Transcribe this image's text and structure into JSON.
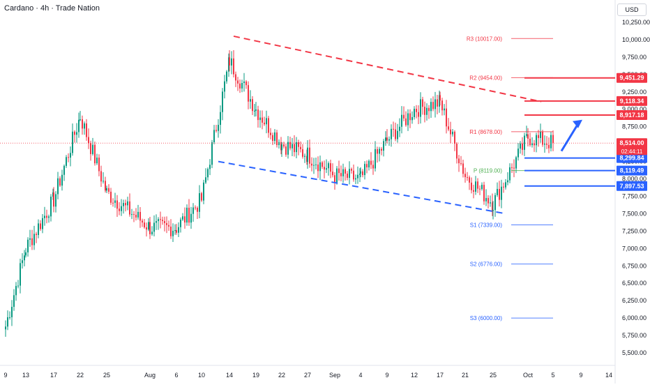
{
  "header": {
    "title": "Cardano · 4h · Trade Nation",
    "currency": "USD"
  },
  "colors": {
    "bull": "#089981",
    "bear": "#f23645",
    "resistance": "#f23645",
    "support": "#2962ff",
    "trend_upper": "#f23645",
    "trend_lower": "#2962ff",
    "pivot_r": "#f23645",
    "pivot_s": "#2962ff",
    "pivot_p": "#4caf50",
    "arrow": "#2962ff",
    "last_price": "#f23645"
  },
  "chart_data": {
    "type": "candlestick",
    "title": "Cardano · 4h · Trade Nation",
    "currency": "USD",
    "x_ticks": [
      "9",
      "13",
      "17",
      "22",
      "25",
      "Aug",
      "6",
      "10",
      "14",
      "19",
      "22",
      "27",
      "Sep",
      "4",
      "9",
      "12",
      "17",
      "21",
      "25",
      "Oct",
      "5",
      "9",
      "14"
    ],
    "y_ticks": [
      "10,250.00",
      "10,000.00",
      "9,750.00",
      "9,500.00",
      "9,250.00",
      "9,000.00",
      "8,750.00",
      "8,500.00",
      "8,250.00",
      "8,000.00",
      "7,750.00",
      "7,500.00",
      "7,250.00",
      "7,000.00",
      "6,750.00",
      "6,500.00",
      "6,250.00",
      "6,000.00",
      "5,750.00",
      "5,500.00"
    ],
    "ylim": [
      5400,
      10450
    ],
    "grid": false,
    "price_path": [
      [
        "9",
        5880
      ],
      [
        "13",
        7000
      ],
      [
        "17",
        7700
      ],
      [
        "22",
        8900
      ],
      [
        "25",
        7800
      ],
      [
        "Aug",
        7300
      ],
      [
        "6",
        7300
      ],
      [
        "10",
        7700
      ],
      [
        "14",
        9700
      ],
      [
        "19",
        9000
      ],
      [
        "22",
        8500
      ],
      [
        "27",
        8350
      ],
      [
        "Sep",
        8050
      ],
      [
        "4",
        8000
      ],
      [
        "9",
        8550
      ],
      [
        "12",
        9000
      ],
      [
        "17",
        9100
      ],
      [
        "21",
        8050
      ],
      [
        "25",
        7650
      ],
      [
        "Oct",
        8600
      ],
      [
        "5",
        8514
      ]
    ],
    "pivots": [
      {
        "label": "R3 (10017.00)",
        "value": 10017,
        "kind": "r"
      },
      {
        "label": "R2 (9454.00)",
        "value": 9454,
        "kind": "r"
      },
      {
        "label": "R1 (8678.00)",
        "value": 8678,
        "kind": "r"
      },
      {
        "label": "P (8119.00)",
        "value": 8119,
        "kind": "p"
      },
      {
        "label": "S1 (7339.00)",
        "value": 7339,
        "kind": "s"
      },
      {
        "label": "S2 (6776.00)",
        "value": 6776,
        "kind": "s"
      },
      {
        "label": "S3 (6000.00)",
        "value": 6000,
        "kind": "s"
      }
    ],
    "resistance_levels": [
      {
        "label": "9,451.29",
        "value": 9451.29
      },
      {
        "label": "9,118.34",
        "value": 9118.34
      },
      {
        "label": "8,917.18",
        "value": 8917.18
      }
    ],
    "support_levels": [
      {
        "label": "8,299.84",
        "value": 8299.84
      },
      {
        "label": "8,119.49",
        "value": 8119.49
      },
      {
        "label": "7,897.53",
        "value": 7897.53
      }
    ],
    "last_price": {
      "label": "8,514.00",
      "value": 8514,
      "countdown": "02:44:11"
    },
    "trendlines": [
      {
        "kind": "upper",
        "from": [
          "14",
          10050
        ],
        "to": [
          "Oct",
          9110
        ]
      },
      {
        "kind": "lower",
        "from": [
          "10",
          8250
        ],
        "to": [
          "25",
          7500
        ]
      }
    ],
    "arrow": {
      "from": [
        "5",
        8400
      ],
      "to": [
        "9",
        8850
      ]
    }
  }
}
